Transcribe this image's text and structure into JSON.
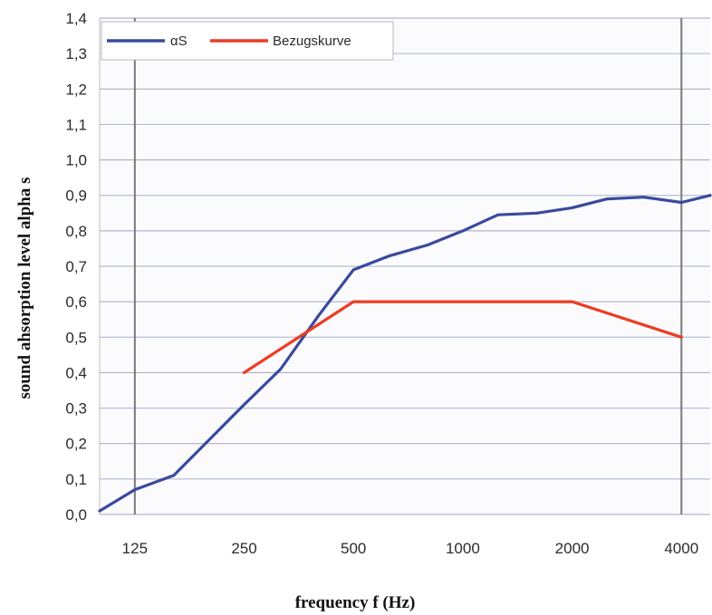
{
  "chart_data": {
    "type": "line",
    "xlabel": "frequency f (Hz)",
    "ylabel": "sound ahsorption level alpha s",
    "x_scale": "log2",
    "xlim": [
      100,
      4800
    ],
    "ylim": [
      0,
      1.4
    ],
    "y_ticks": [
      0.0,
      0.1,
      0.2,
      0.3,
      0.4,
      0.5,
      0.6,
      0.7,
      0.8,
      0.9,
      1.0,
      1.1,
      1.2,
      1.3,
      1.4
    ],
    "y_tick_labels": [
      "0,0",
      "0,1",
      "0,2",
      "0,3",
      "0,4",
      "0,5",
      "0,6",
      "0,7",
      "0,8",
      "0,9",
      "1,0",
      "1,1",
      "1,2",
      "1,3",
      "1,4"
    ],
    "x_ticks": [
      125,
      250,
      500,
      1000,
      2000,
      4000
    ],
    "x_tick_labels": [
      "125",
      "250",
      "500",
      "1000",
      "2000",
      "4000"
    ],
    "grid": true,
    "legend_position": "top-left",
    "series": [
      {
        "name": "αS",
        "color": "#3a4a9e",
        "x": [
          100,
          125,
          160,
          200,
          250,
          315,
          400,
          500,
          630,
          800,
          1000,
          1250,
          1600,
          2000,
          2500,
          3150,
          4000,
          4800
        ],
        "y": [
          0.01,
          0.07,
          0.11,
          0.21,
          0.31,
          0.41,
          0.56,
          0.69,
          0.73,
          0.76,
          0.8,
          0.845,
          0.85,
          0.865,
          0.89,
          0.895,
          0.88,
          0.9
        ]
      },
      {
        "name": "Bezugskurve",
        "color": "#ef3b23",
        "x": [
          250,
          500,
          2000,
          4000
        ],
        "y": [
          0.4,
          0.6,
          0.6,
          0.5
        ]
      }
    ]
  }
}
